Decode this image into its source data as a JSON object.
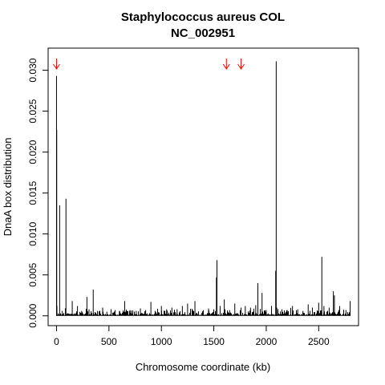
{
  "chart_data": {
    "type": "bar",
    "title": "Staphylococcus aureus COL",
    "subtitle": "NC_002951",
    "xlabel": "Chromosome coordinate (kb)",
    "ylabel": "DnaA box distribution",
    "xlim": [
      -80,
      2880
    ],
    "ylim": [
      -0.0012,
      0.0327
    ],
    "xticks": [
      0,
      500,
      1000,
      1500,
      2000,
      2500
    ],
    "xtick_labels": [
      "0",
      "500",
      "1000",
      "1500",
      "2000",
      "2500"
    ],
    "yticks": [
      0,
      0.005,
      0.01,
      0.015,
      0.02,
      0.025,
      0.03
    ],
    "ytick_labels": [
      "0.000",
      "0.005",
      "0.010",
      "0.015",
      "0.020",
      "0.025",
      "0.030"
    ],
    "grid": false,
    "legend": "none",
    "marker_color": "#ff0000",
    "line_color": "#000000",
    "series": [
      {
        "x": [
          0,
          2,
          4,
          30,
          55,
          90,
          150,
          200,
          240,
          290,
          310,
          350,
          390,
          440,
          480,
          520,
          560,
          600,
          650,
          660,
          700,
          760,
          800,
          850,
          900,
          940,
          1000,
          1050,
          1100,
          1150,
          1200,
          1250,
          1300,
          1320,
          1400,
          1450,
          1500,
          1525,
          1530,
          1560,
          1600,
          1650,
          1700,
          1760,
          1800,
          1850,
          1900,
          1920,
          1960,
          2000,
          2050,
          2090,
          2095,
          2100,
          2150,
          2200,
          2250,
          2300,
          2350,
          2400,
          2440,
          2500,
          2530,
          2550,
          2600,
          2640,
          2650,
          2700,
          2760,
          2800
        ],
        "values": [
          0.0293,
          0.0227,
          0.0012,
          0.0135,
          0.0006,
          0.0143,
          0.0018,
          0.0012,
          0.0006,
          0.0023,
          0.0008,
          0.0032,
          0.0006,
          0.001,
          0.0005,
          0.0008,
          0.0007,
          0.0006,
          0.0018,
          0.0005,
          0.0007,
          0.0006,
          0.0009,
          0.0007,
          0.0017,
          0.0006,
          0.0012,
          0.0008,
          0.001,
          0.0008,
          0.0012,
          0.0015,
          0.0006,
          0.0018,
          0.0007,
          0.0009,
          0.0008,
          0.0047,
          0.0068,
          0.0012,
          0.002,
          0.0007,
          0.0015,
          0.001,
          0.0012,
          0.001,
          0.0013,
          0.004,
          0.0028,
          0.0007,
          0.0012,
          0.0055,
          0.0311,
          0.001,
          0.0008,
          0.0007,
          0.0012,
          0.0008,
          0.0006,
          0.0014,
          0.001,
          0.0016,
          0.0072,
          0.0012,
          0.001,
          0.003,
          0.0025,
          0.0012,
          0.0007,
          0.0018
        ]
      }
    ],
    "markers_x": [
      0,
      1620,
      1760
    ]
  }
}
